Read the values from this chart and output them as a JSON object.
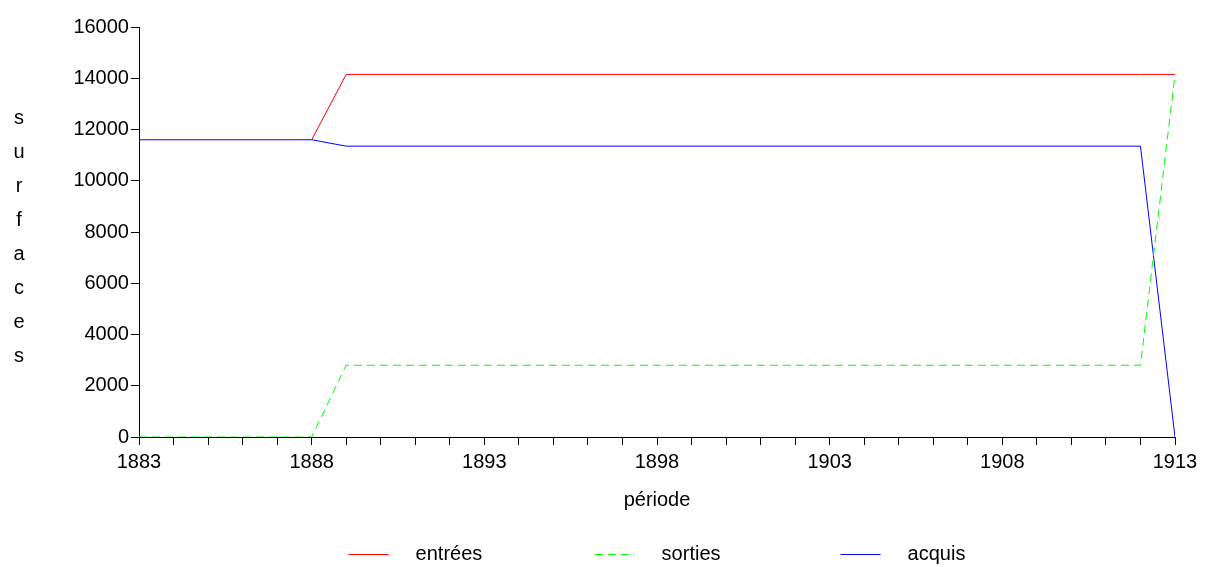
{
  "chart_data": {
    "type": "line",
    "xlabel": "période",
    "ylabel": "surfaces",
    "x": [
      1883,
      1888,
      1889,
      1912,
      1913
    ],
    "series": [
      {
        "name": "entrées",
        "color": "#ff0000",
        "values": [
          null,
          11600,
          14150,
          14150,
          14150
        ]
      },
      {
        "name": "sorties",
        "color": "#00ff00",
        "line_style": "dashed",
        "values": [
          0,
          0,
          2800,
          2800,
          14150
        ]
      },
      {
        "name": "acquis",
        "color": "#0000ff",
        "values": [
          11600,
          11600,
          11350,
          11350,
          0
        ]
      }
    ],
    "xlim": [
      1883,
      1913
    ],
    "xticks": [
      1883,
      {
        "value": 1884,
        "label": null
      },
      {
        "value": 1885,
        "label": null
      },
      {
        "value": 1886,
        "label": null
      },
      {
        "value": 1887,
        "label": null
      },
      1888,
      {
        "value": 1889,
        "label": null
      },
      {
        "value": 1890,
        "label": null
      },
      {
        "value": 1891,
        "label": null
      },
      {
        "value": 1892,
        "label": null
      },
      1893,
      {
        "value": 1894,
        "label": null
      },
      {
        "value": 1895,
        "label": null
      },
      {
        "value": 1896,
        "label": null
      },
      {
        "value": 1897,
        "label": null
      },
      1898,
      {
        "value": 1899,
        "label": null
      },
      {
        "value": 1900,
        "label": null
      },
      {
        "value": 1901,
        "label": null
      },
      {
        "value": 1902,
        "label": null
      },
      1903,
      {
        "value": 1904,
        "label": null
      },
      {
        "value": 1905,
        "label": null
      },
      {
        "value": 1906,
        "label": null
      },
      {
        "value": 1907,
        "label": null
      },
      1908,
      {
        "value": 1909,
        "label": null
      },
      {
        "value": 1910,
        "label": null
      },
      {
        "value": 1911,
        "label": null
      },
      {
        "value": 1912,
        "label": null
      },
      1913
    ],
    "ylim": [
      0,
      16000
    ],
    "yticks": [
      0,
      2000,
      4000,
      6000,
      8000,
      10000,
      12000,
      14000,
      16000
    ],
    "grid": false,
    "legend": "bottom",
    "marker": "none"
  }
}
